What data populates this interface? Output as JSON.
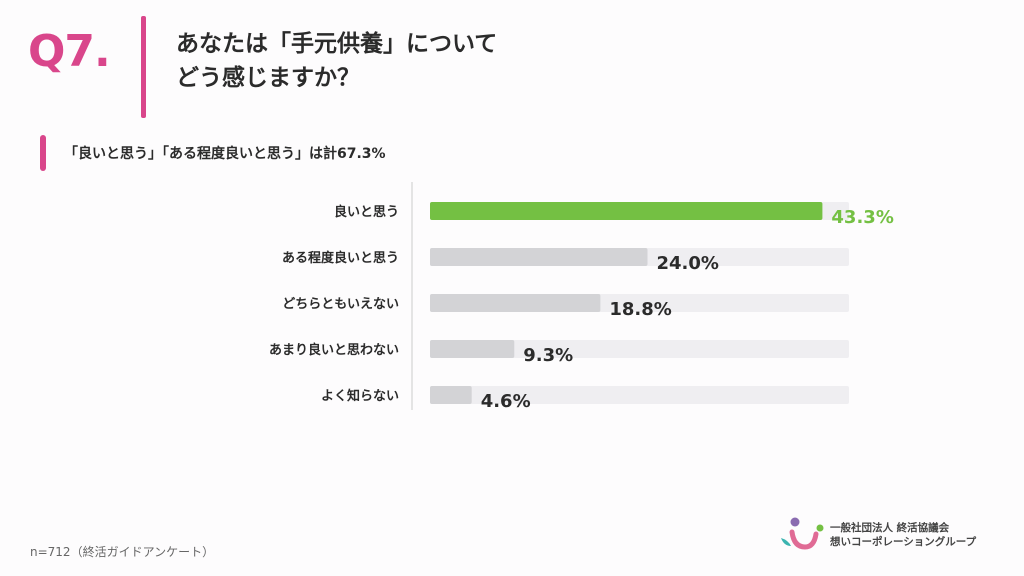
{
  "question": {
    "number": "Q7.",
    "title_line1": "あなたは「手元供養」について",
    "title_line2": "どう感じますか？"
  },
  "subheading": "「良いと思う」「ある程度良いと思う」は計67.3%",
  "colors": {
    "accent": "#d9468b",
    "highlight_bar": "#74c043",
    "highlight_label": "#74c043",
    "bar": "#d3d3d6",
    "track": "#efeef1",
    "axis": "#cccccc",
    "text": "#2b2b2b"
  },
  "chart_data": {
    "type": "bar",
    "orientation": "horizontal",
    "categories": [
      "良いと思う",
      "ある程度良いと思う",
      "どちらともいえない",
      "あまり良いと思わない",
      "よく知らない"
    ],
    "values": [
      43.3,
      24.0,
      18.8,
      9.3,
      4.6
    ],
    "value_labels": [
      "43.3%",
      "24.0%",
      "18.8%",
      "9.3%",
      "4.6%"
    ],
    "unit": "%",
    "xlim": [
      0,
      44.8
    ],
    "highlight_index": 0,
    "grid": false,
    "title": "",
    "xlabel": "",
    "ylabel": ""
  },
  "footer": {
    "note": "n=712（終活ガイドアンケート）",
    "org_line1": "一般社団法人 終活協議会",
    "org_line2": "想いコーポレーショングループ"
  },
  "icons": [
    "logo-icon"
  ]
}
